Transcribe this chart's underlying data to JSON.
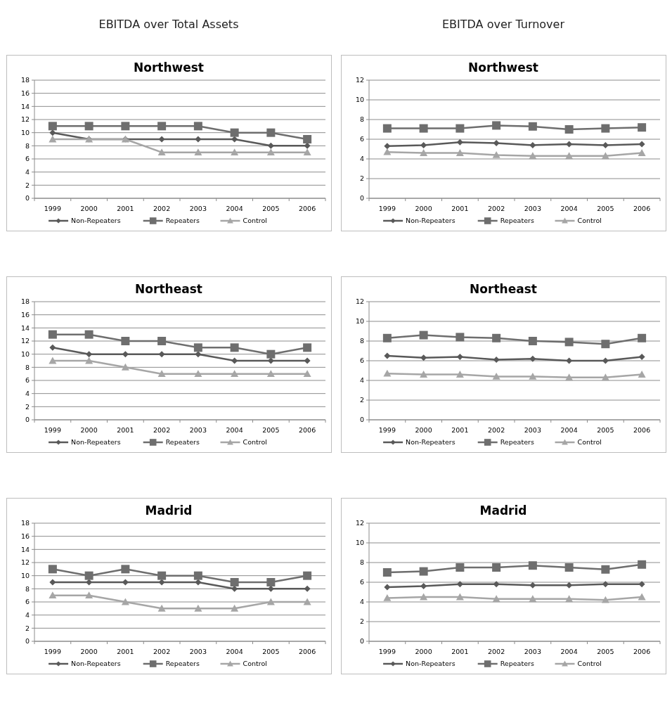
{
  "chart_data": [
    {
      "type": "line",
      "subtitle": "EBITDA over Total Assets",
      "title": "Northwest",
      "categories": [
        "1999",
        "2000",
        "2001",
        "2002",
        "2003",
        "2004",
        "2005",
        "2006"
      ],
      "ylim": [
        0,
        18
      ],
      "yticks": [
        0,
        2,
        4,
        6,
        8,
        10,
        12,
        14,
        16,
        18
      ],
      "grid": "y",
      "legend": "bottom",
      "series": [
        {
          "name": "Non-Repeaters",
          "color": "#595959",
          "marker": "diamond",
          "values": [
            10,
            9,
            9,
            9,
            9,
            9,
            8,
            8
          ]
        },
        {
          "name": "Repeaters",
          "color": "#6e6e6e",
          "marker": "square",
          "values": [
            11,
            11,
            11,
            11,
            11,
            10,
            10,
            9
          ]
        },
        {
          "name": "Control",
          "color": "#a6a6a6",
          "marker": "triangle",
          "values": [
            9,
            9,
            9,
            7,
            7,
            7,
            7,
            7
          ]
        }
      ]
    },
    {
      "type": "line",
      "subtitle": "EBITDA over Turnover",
      "title": "Northwest",
      "categories": [
        "1999",
        "2000",
        "2001",
        "2002",
        "2003",
        "2004",
        "2005",
        "2006"
      ],
      "ylim": [
        0,
        12
      ],
      "yticks": [
        0,
        2,
        4,
        6,
        8,
        10,
        12
      ],
      "grid": "y",
      "legend": "bottom",
      "series": [
        {
          "name": "Non-Repeaters",
          "color": "#595959",
          "marker": "diamond",
          "values": [
            5.3,
            5.4,
            5.7,
            5.6,
            5.4,
            5.5,
            5.4,
            5.5
          ]
        },
        {
          "name": "Repeaters",
          "color": "#6e6e6e",
          "marker": "square",
          "values": [
            7.1,
            7.1,
            7.1,
            7.4,
            7.3,
            7.0,
            7.1,
            7.2
          ]
        },
        {
          "name": "Control",
          "color": "#a6a6a6",
          "marker": "triangle",
          "values": [
            4.7,
            4.6,
            4.6,
            4.4,
            4.3,
            4.3,
            4.3,
            4.6
          ]
        }
      ]
    },
    {
      "type": "line",
      "title": "Northeast",
      "categories": [
        "1999",
        "2000",
        "2001",
        "2002",
        "2003",
        "2004",
        "2005",
        "2006"
      ],
      "ylim": [
        0,
        18
      ],
      "yticks": [
        0,
        2,
        4,
        6,
        8,
        10,
        12,
        14,
        16,
        18
      ],
      "grid": "y",
      "legend": "bottom",
      "series": [
        {
          "name": "Non-Repeaters",
          "color": "#595959",
          "marker": "diamond",
          "values": [
            11,
            10,
            10,
            10,
            10,
            9,
            9,
            9
          ]
        },
        {
          "name": "Repeaters",
          "color": "#6e6e6e",
          "marker": "square",
          "values": [
            13,
            13,
            12,
            12,
            11,
            11,
            10,
            11
          ]
        },
        {
          "name": "Control",
          "color": "#a6a6a6",
          "marker": "triangle",
          "values": [
            9,
            9,
            8,
            7,
            7,
            7,
            7,
            7
          ]
        }
      ]
    },
    {
      "type": "line",
      "title": "Northeast",
      "categories": [
        "1999",
        "2000",
        "2001",
        "2002",
        "2003",
        "2004",
        "2005",
        "2006"
      ],
      "ylim": [
        0,
        12
      ],
      "yticks": [
        0,
        2,
        4,
        6,
        8,
        10,
        12
      ],
      "grid": "y",
      "legend": "bottom",
      "series": [
        {
          "name": "Non-Repeaters",
          "color": "#595959",
          "marker": "diamond",
          "values": [
            6.5,
            6.3,
            6.4,
            6.1,
            6.2,
            6.0,
            6.0,
            6.4
          ]
        },
        {
          "name": "Repeaters",
          "color": "#6e6e6e",
          "marker": "square",
          "values": [
            8.3,
            8.6,
            8.4,
            8.3,
            8.0,
            7.9,
            7.7,
            8.3
          ]
        },
        {
          "name": "Control",
          "color": "#a6a6a6",
          "marker": "triangle",
          "values": [
            4.7,
            4.6,
            4.6,
            4.4,
            4.4,
            4.3,
            4.3,
            4.6
          ]
        }
      ]
    },
    {
      "type": "line",
      "title": "Madrid",
      "categories": [
        "1999",
        "2000",
        "2001",
        "2002",
        "2003",
        "2004",
        "2005",
        "2006"
      ],
      "ylim": [
        0,
        18
      ],
      "yticks": [
        0,
        2,
        4,
        6,
        8,
        10,
        12,
        14,
        16,
        18
      ],
      "grid": "y",
      "legend": "bottom",
      "series": [
        {
          "name": "Non-Repeaters",
          "color": "#595959",
          "marker": "diamond",
          "values": [
            9,
            9,
            9,
            9,
            9,
            8,
            8,
            8
          ]
        },
        {
          "name": "Repeaters",
          "color": "#6e6e6e",
          "marker": "square",
          "values": [
            11,
            10,
            11,
            10,
            10,
            9,
            9,
            10
          ]
        },
        {
          "name": "Control",
          "color": "#a6a6a6",
          "marker": "triangle",
          "values": [
            7,
            7,
            6,
            5,
            5,
            5,
            6,
            6
          ]
        }
      ]
    },
    {
      "type": "line",
      "title": "Madrid",
      "categories": [
        "1999",
        "2000",
        "2001",
        "2002",
        "2003",
        "2004",
        "2005",
        "2006"
      ],
      "ylim": [
        0,
        12
      ],
      "yticks": [
        0,
        2,
        4,
        6,
        8,
        10,
        12
      ],
      "grid": "y",
      "legend": "bottom",
      "series": [
        {
          "name": "Non-Repeaters",
          "color": "#595959",
          "marker": "diamond",
          "values": [
            5.5,
            5.6,
            5.8,
            5.8,
            5.7,
            5.7,
            5.8,
            5.8
          ]
        },
        {
          "name": "Repeaters",
          "color": "#6e6e6e",
          "marker": "square",
          "values": [
            7.0,
            7.1,
            7.5,
            7.5,
            7.7,
            7.5,
            7.3,
            7.8
          ]
        },
        {
          "name": "Control",
          "color": "#a6a6a6",
          "marker": "triangle",
          "values": [
            4.4,
            4.5,
            4.5,
            4.3,
            4.3,
            4.3,
            4.2,
            4.5
          ]
        }
      ]
    }
  ]
}
